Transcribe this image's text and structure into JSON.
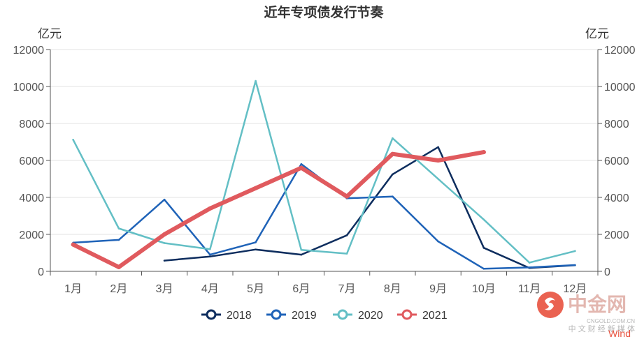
{
  "chart_data": {
    "type": "line",
    "title": "近年专项债发行节奏",
    "y_unit_left": "亿元",
    "y_unit_right": "亿元",
    "ylim": [
      0,
      12000
    ],
    "yticks": [
      0,
      2000,
      4000,
      6000,
      8000,
      10000,
      12000
    ],
    "categories": [
      "1月",
      "2月",
      "3月",
      "4月",
      "5月",
      "6月",
      "7月",
      "8月",
      "9月",
      "10月",
      "11月",
      "12月"
    ],
    "grid": true,
    "legend_position": "bottom-center",
    "series": [
      {
        "name": "2018",
        "color": "#0d2d5e",
        "width": 2.5,
        "values": [
          null,
          null,
          580,
          800,
          1180,
          900,
          1950,
          5250,
          6720,
          1270,
          180,
          330
        ]
      },
      {
        "name": "2019",
        "color": "#1f63b8",
        "width": 2.5,
        "values": [
          1550,
          1700,
          3880,
          900,
          1570,
          5800,
          3950,
          4050,
          1620,
          140,
          210,
          340
        ]
      },
      {
        "name": "2020",
        "color": "#63bfc5",
        "width": 2.5,
        "values": [
          7120,
          2320,
          1530,
          1200,
          10300,
          1160,
          960,
          7200,
          5000,
          2800,
          470,
          1100
        ]
      },
      {
        "name": "2021",
        "color": "#e05a5e",
        "width": 6,
        "values": [
          1450,
          230,
          2000,
          3400,
          4500,
          5600,
          4050,
          6350,
          6000,
          6450,
          null,
          null
        ]
      }
    ]
  },
  "watermark": {
    "brand": "中金网",
    "domain": "CNGOLD.COM.CN",
    "tagline": "中 文 财 经 新 媒 体",
    "logo_color": "#e8523f"
  },
  "source": {
    "label": "Wind",
    "color": "#e8523f"
  }
}
